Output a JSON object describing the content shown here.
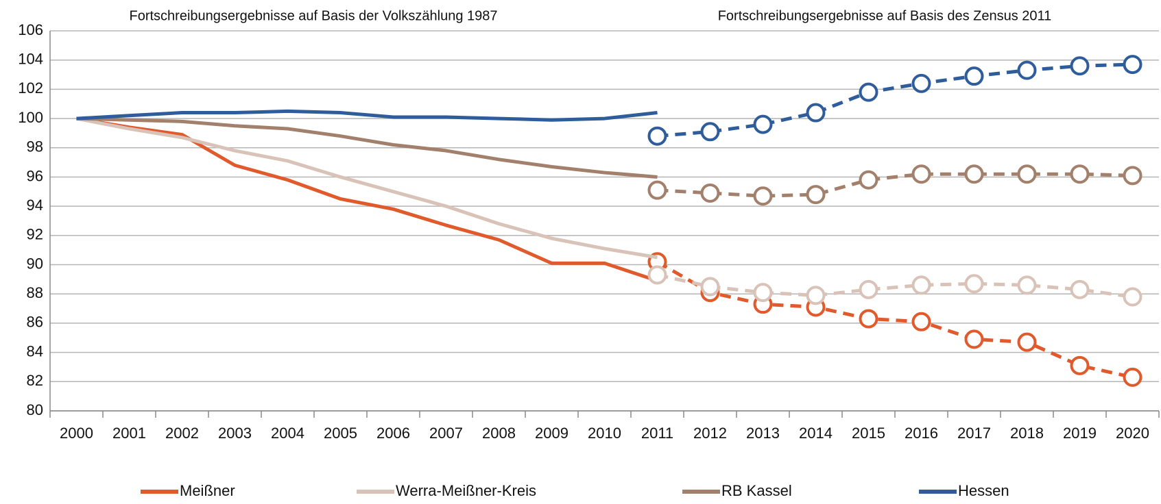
{
  "chart_data": {
    "type": "line",
    "annotations": [
      "Fortschreibungsergebnisse auf Basis der Volkszählung 1987",
      "Fortschreibungsergebnisse auf Basis des Zensus 2011"
    ],
    "categories": [
      "2000",
      "2001",
      "2002",
      "2003",
      "2004",
      "2005",
      "2006",
      "2007",
      "2008",
      "2009",
      "2010",
      "2011",
      "2012",
      "2013",
      "2014",
      "2015",
      "2016",
      "2017",
      "2018",
      "2019",
      "2020"
    ],
    "ylim": [
      80,
      106
    ],
    "yticks": [
      80,
      82,
      84,
      86,
      88,
      90,
      92,
      94,
      96,
      98,
      100,
      102,
      104,
      106
    ],
    "grid": true,
    "legend": "bottom",
    "series": [
      {
        "name": "Meißner",
        "color": "#e05a2b",
        "values": [
          100,
          99.4,
          98.9,
          96.8,
          95.8,
          94.5,
          93.8,
          92.7,
          91.7,
          90.1,
          90.1,
          88.9,
          null,
          null,
          null,
          null,
          null,
          null,
          null,
          null,
          null
        ],
        "census_values": [
          null,
          null,
          null,
          null,
          null,
          null,
          null,
          null,
          null,
          null,
          null,
          90.2,
          88.1,
          87.3,
          87.1,
          86.3,
          86.1,
          84.9,
          84.7,
          83.1,
          82.3
        ]
      },
      {
        "name": "Werra-Meißner-Kreis",
        "color": "#d9c3b8",
        "values": [
          100,
          99.3,
          98.7,
          97.8,
          97.1,
          96.0,
          95.0,
          94.0,
          92.8,
          91.8,
          91.1,
          90.5,
          null,
          null,
          null,
          null,
          null,
          null,
          null,
          null,
          null
        ],
        "census_values": [
          null,
          null,
          null,
          null,
          null,
          null,
          null,
          null,
          null,
          null,
          null,
          89.3,
          88.5,
          88.1,
          87.9,
          88.3,
          88.6,
          88.7,
          88.6,
          88.3,
          87.8
        ]
      },
      {
        "name": "RB Kassel",
        "color": "#a2806b",
        "values": [
          100,
          99.9,
          99.8,
          99.5,
          99.3,
          98.8,
          98.2,
          97.8,
          97.2,
          96.7,
          96.3,
          96.0,
          null,
          null,
          null,
          null,
          null,
          null,
          null,
          null,
          null
        ],
        "census_values": [
          null,
          null,
          null,
          null,
          null,
          null,
          null,
          null,
          null,
          null,
          null,
          95.1,
          94.9,
          94.7,
          94.8,
          95.8,
          96.2,
          96.2,
          96.2,
          96.2,
          96.1
        ]
      },
      {
        "name": "Hessen",
        "color": "#2f5d9c",
        "values": [
          100,
          100.2,
          100.4,
          100.4,
          100.5,
          100.4,
          100.1,
          100.1,
          100.0,
          99.9,
          100.0,
          100.4,
          null,
          null,
          null,
          null,
          null,
          null,
          null,
          null,
          null
        ],
        "census_values": [
          null,
          null,
          null,
          null,
          null,
          null,
          null,
          null,
          null,
          null,
          null,
          98.8,
          99.1,
          99.6,
          100.4,
          101.8,
          102.4,
          102.9,
          103.3,
          103.6,
          103.7
        ]
      }
    ]
  }
}
